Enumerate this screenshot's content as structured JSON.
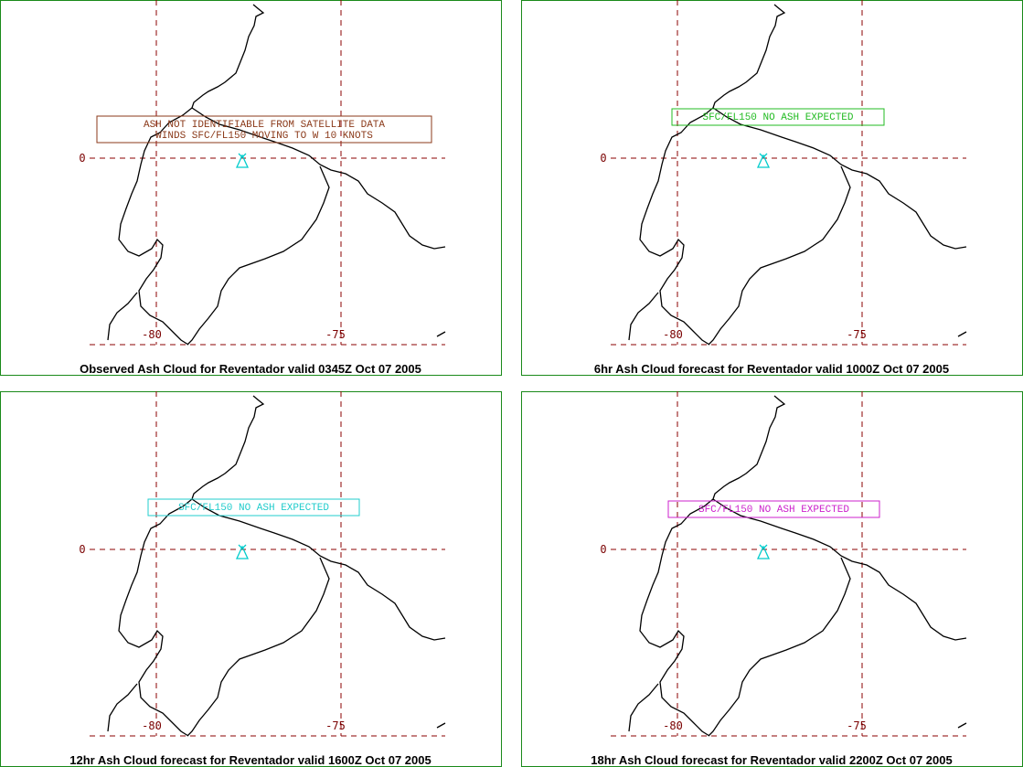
{
  "panels": [
    {
      "caption": "Observed Ash Cloud for Reventador valid 0345Z Oct 07 2005",
      "annotation": [
        "ASH NOT IDENTIFIABLE FROM SATELLITE DATA",
        "WINDS SFC/FL150 MOVING TO W 10 KNOTS"
      ],
      "annotation_color": "#8b3a1a",
      "lat_labels": [
        "0"
      ],
      "lon_labels": [
        "-80",
        "-75"
      ]
    },
    {
      "caption": "6hr Ash Cloud forecast for Reventador valid 1000Z Oct 07 2005",
      "annotation": [
        "SFC/FL150 NO ASH EXPECTED"
      ],
      "annotation_color": "#22bb22",
      "lat_labels": [
        "0"
      ],
      "lon_labels": [
        "-80",
        "-75"
      ]
    },
    {
      "caption": "12hr Ash Cloud forecast for Reventador valid 1600Z Oct 07 2005",
      "annotation": [
        "SFC/FL150 NO ASH EXPECTED"
      ],
      "annotation_color": "#22cccc",
      "lat_labels": [
        "0"
      ],
      "lon_labels": [
        "-80",
        "-75"
      ]
    },
    {
      "caption": "18hr Ash Cloud forecast for Reventador valid 2200Z Oct 07 2005",
      "annotation": [
        "SFC/FL150 NO ASH EXPECTED"
      ],
      "annotation_color": "#cc22cc",
      "lat_labels": [
        "0"
      ],
      "lon_labels": [
        "-80",
        "-75"
      ]
    }
  ]
}
